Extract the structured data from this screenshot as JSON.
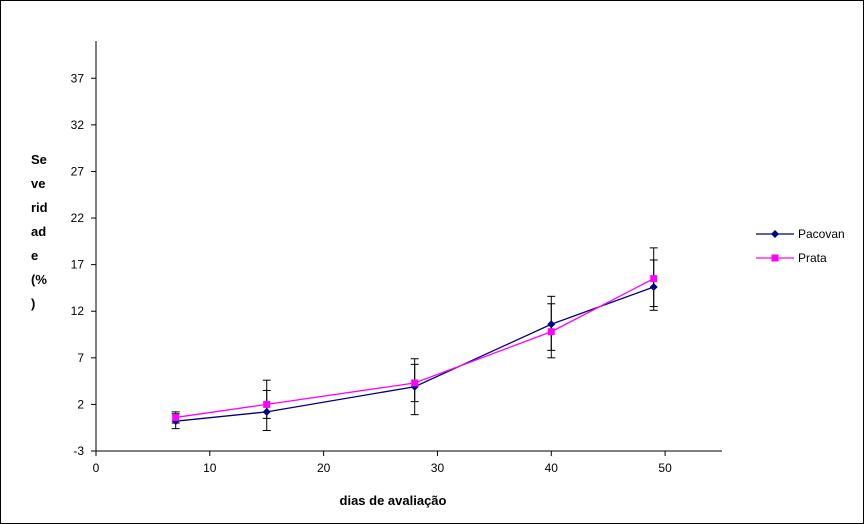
{
  "chart_data": {
    "type": "line",
    "title": "",
    "xlabel": "dias de avaliação",
    "ylabel_lines": [
      "Se",
      "ve",
      "rid",
      "ad",
      "e",
      "(%",
      ")"
    ],
    "xlim": [
      0,
      55
    ],
    "ylim": [
      -3,
      41
    ],
    "x_ticks": [
      0,
      10,
      20,
      30,
      40,
      50
    ],
    "y_ticks": [
      -3,
      2,
      7,
      12,
      17,
      22,
      27,
      32,
      37
    ],
    "grid": false,
    "legend_position": "right",
    "series": [
      {
        "name": "Pacovan",
        "color": "#000080",
        "marker": "diamond",
        "x": [
          7,
          15,
          28,
          40,
          49
        ],
        "y": [
          0.2,
          1.2,
          3.9,
          10.6,
          14.6
        ],
        "err_low": [
          0.8,
          2.0,
          3.0,
          2.8,
          2.5
        ],
        "err_high": [
          0.8,
          3.4,
          2.4,
          3.0,
          2.9
        ]
      },
      {
        "name": "Prata",
        "color": "#ff00ff",
        "marker": "square",
        "x": [
          7,
          15,
          28,
          40,
          49
        ],
        "y": [
          0.6,
          2.0,
          4.3,
          9.8,
          15.5
        ],
        "err_low": [
          0.6,
          1.5,
          2.0,
          2.8,
          3.0
        ],
        "err_high": [
          0.6,
          1.5,
          2.6,
          3.0,
          3.3
        ]
      }
    ]
  }
}
